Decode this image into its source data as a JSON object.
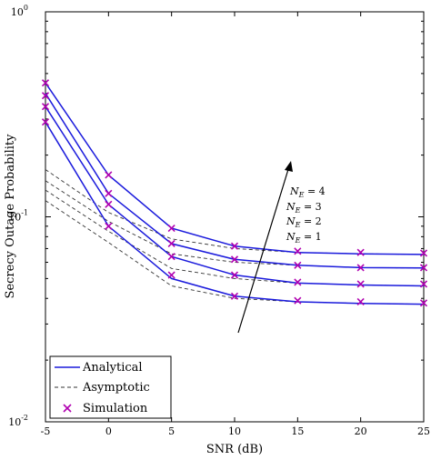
{
  "chart_data": {
    "type": "line",
    "xlabel": "SNR (dB)",
    "ylabel": "Secrecy Outage Probability",
    "xlim": [
      -5,
      25
    ],
    "ylim": [
      0.01,
      1
    ],
    "yscale": "log",
    "x_ticks": [
      -5,
      0,
      5,
      10,
      15,
      20,
      25
    ],
    "x_tick_labels": [
      "-5",
      "0",
      "5",
      "10",
      "15",
      "20",
      "25"
    ],
    "y_ticks": [
      0.01,
      0.1,
      1
    ],
    "y_tick_labels": [
      "10",
      "10",
      "10"
    ],
    "y_tick_exponents": [
      "-2",
      "-1",
      "0"
    ],
    "grid": false,
    "legend_position": "bottom-left",
    "legend": {
      "analytical": "Analytical",
      "asymptotic": "Asymptotic",
      "simulation": "Simulation"
    },
    "annotations": {
      "ne4": "N",
      "ne3": "N",
      "ne2": "N",
      "ne1": "N",
      "ne4_sub": "E",
      "ne3_sub": "E",
      "ne2_sub": "E",
      "ne1_sub": "E",
      "ne4_val": " = 4",
      "ne3_val": " = 3",
      "ne2_val": " = 2",
      "ne1_val": " = 1"
    },
    "x": [
      -5,
      0,
      5,
      10,
      15,
      20,
      25
    ],
    "series": [
      {
        "name": "N_E = 1",
        "kind": "analytical",
        "values": [
          0.29,
          0.09,
          0.05,
          0.041,
          0.0385,
          0.0378,
          0.0375
        ]
      },
      {
        "name": "N_E = 2",
        "kind": "analytical",
        "values": [
          0.345,
          0.115,
          0.064,
          0.052,
          0.0475,
          0.0465,
          0.046
        ]
      },
      {
        "name": "N_E = 3",
        "kind": "analytical",
        "values": [
          0.4,
          0.13,
          0.074,
          0.062,
          0.058,
          0.0565,
          0.0563
        ]
      },
      {
        "name": "N_E = 4",
        "kind": "analytical",
        "values": [
          0.45,
          0.16,
          0.088,
          0.072,
          0.067,
          0.066,
          0.0655
        ]
      },
      {
        "name": "N_E = 1 asym",
        "kind": "asymptotic",
        "values": [
          0.12,
          0.075,
          0.046,
          0.04,
          0.0385,
          0.0378,
          0.0375
        ]
      },
      {
        "name": "N_E = 2 asym",
        "kind": "asymptotic",
        "values": [
          0.135,
          0.085,
          0.056,
          0.05,
          0.0475,
          0.0465,
          0.046
        ]
      },
      {
        "name": "N_E = 3 asym",
        "kind": "asymptotic",
        "values": [
          0.15,
          0.095,
          0.066,
          0.06,
          0.058,
          0.0565,
          0.0563
        ]
      },
      {
        "name": "N_E = 4 asym",
        "kind": "asymptotic",
        "values": [
          0.17,
          0.105,
          0.078,
          0.07,
          0.067,
          0.066,
          0.0655
        ]
      },
      {
        "name": "N_E = 1 sim",
        "kind": "simulation",
        "values": [
          0.29,
          0.09,
          0.052,
          0.041,
          0.039,
          0.0385,
          0.038
        ]
      },
      {
        "name": "N_E = 2 sim",
        "kind": "simulation",
        "values": [
          0.345,
          0.115,
          0.064,
          0.052,
          0.048,
          0.047,
          0.047
        ]
      },
      {
        "name": "N_E = 3 sim",
        "kind": "simulation",
        "values": [
          0.39,
          0.13,
          0.074,
          0.062,
          0.058,
          0.0565,
          0.0565
        ]
      },
      {
        "name": "N_E = 4 sim",
        "kind": "simulation",
        "values": [
          0.45,
          0.16,
          0.088,
          0.072,
          0.068,
          0.067,
          0.0665
        ]
      }
    ],
    "colors": {
      "analytical": "#1a1adc",
      "asymptotic": "#333333",
      "simulation": "#b000b0",
      "axis": "#000000"
    }
  }
}
